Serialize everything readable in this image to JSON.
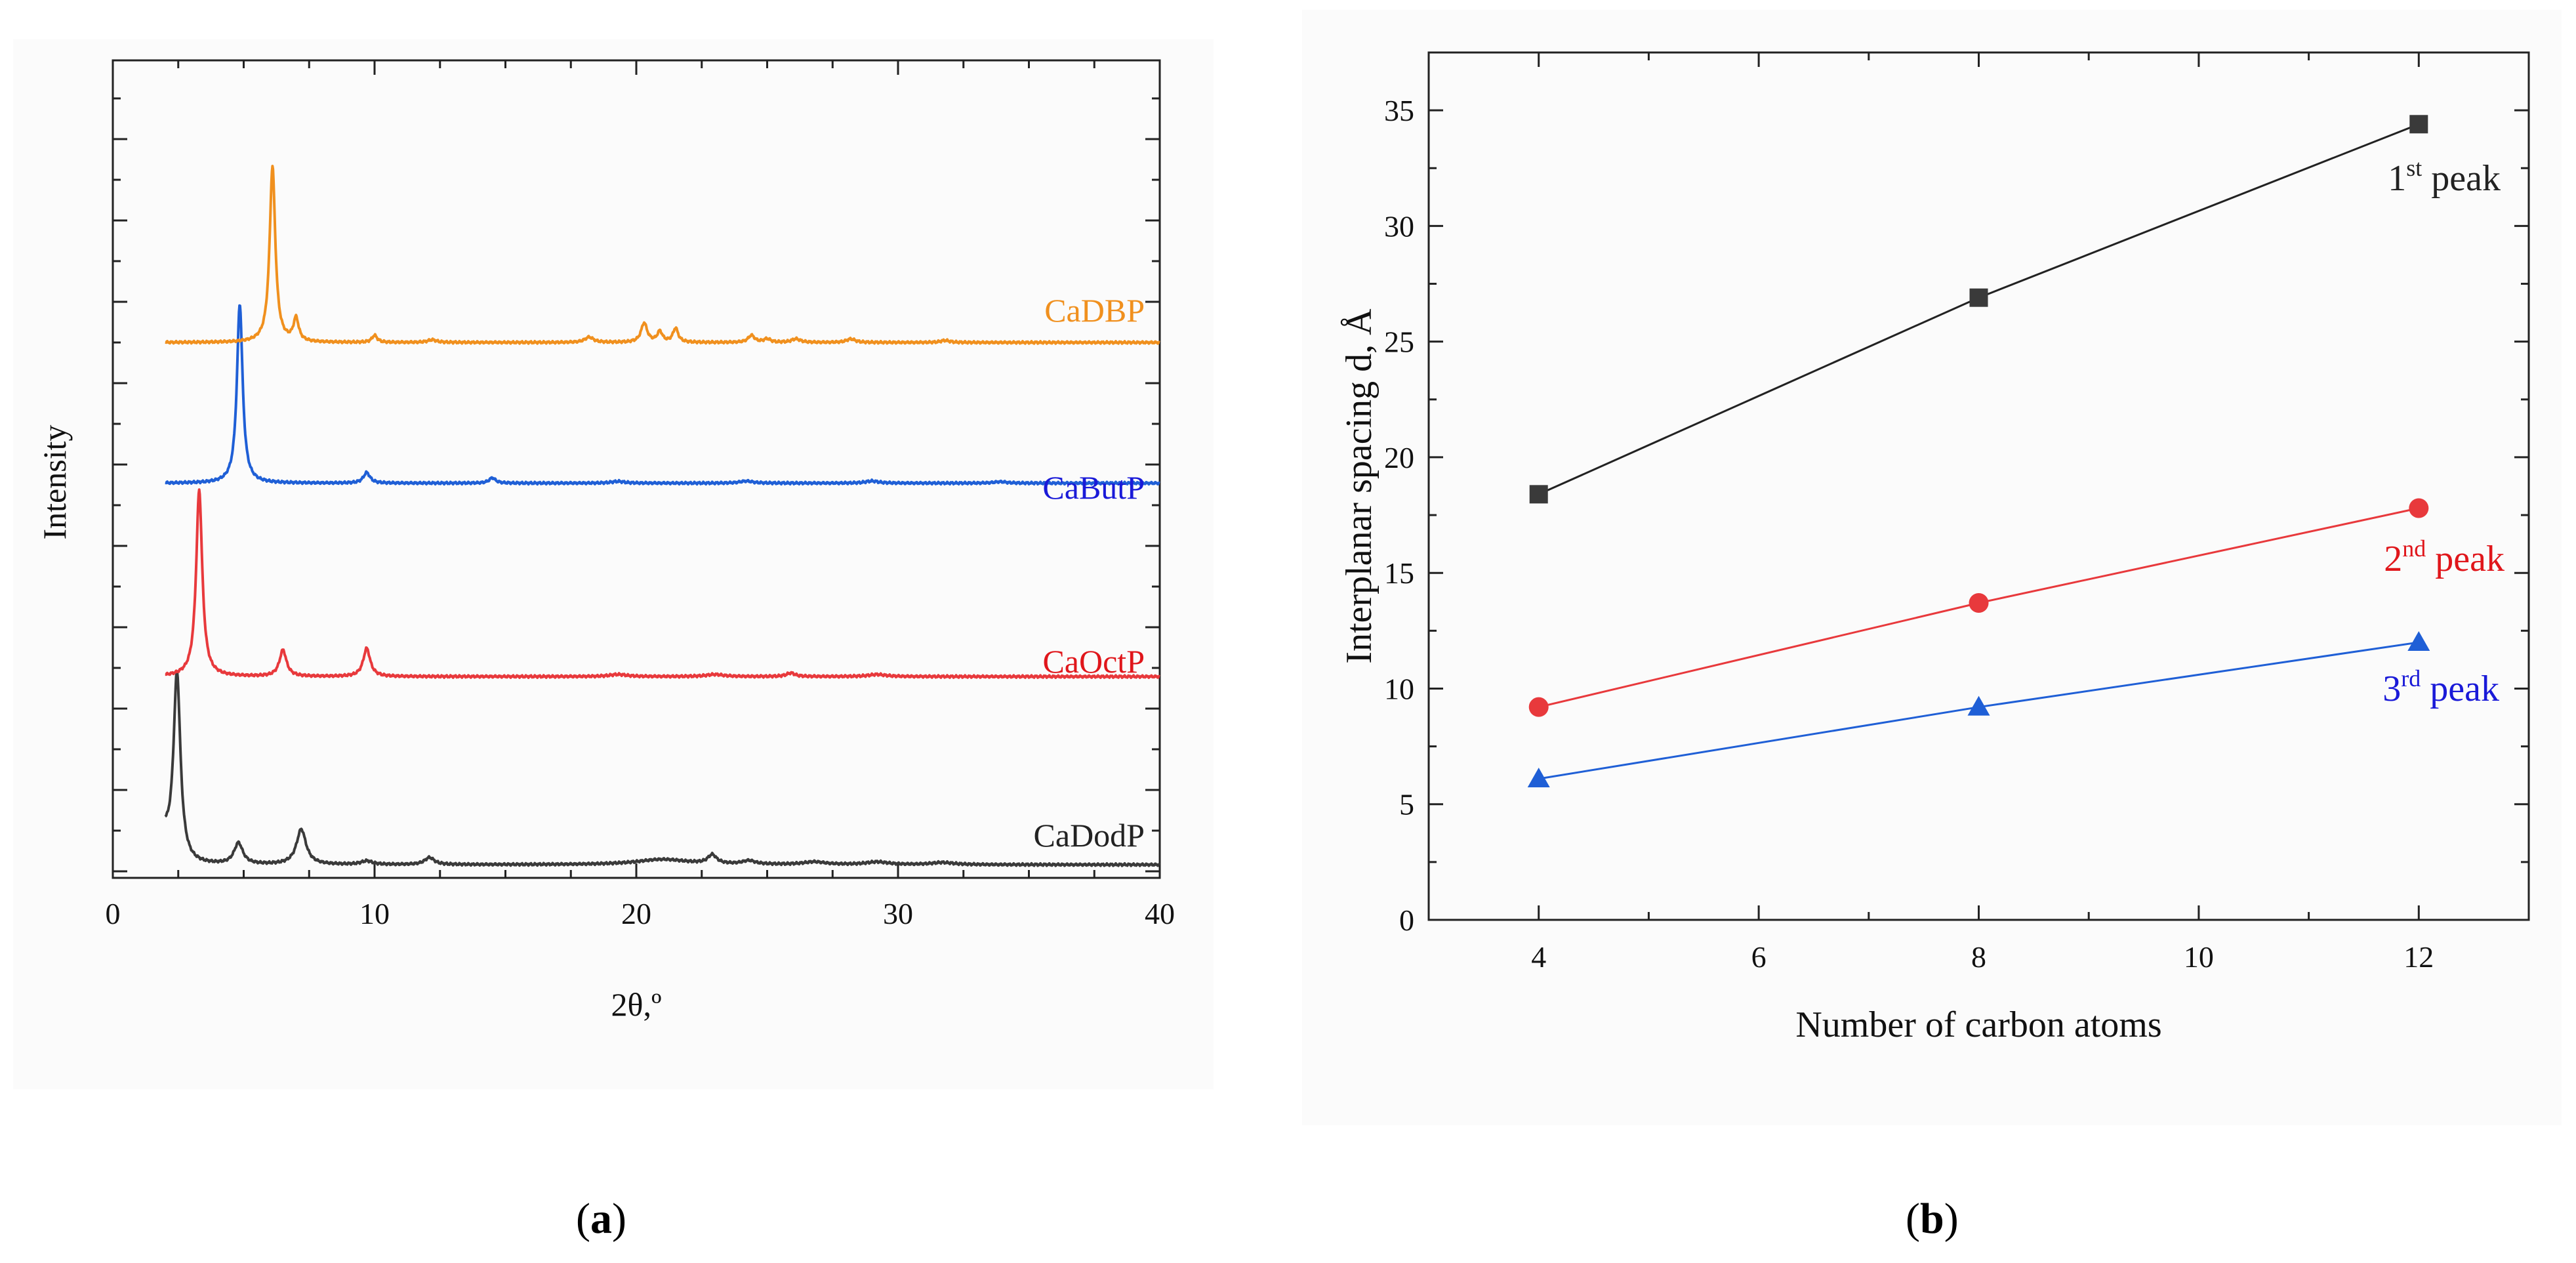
{
  "colors": {
    "black": "#3a3a3a",
    "orange": "#f0901e",
    "blue": "#1f5fd6",
    "red": "#e8393c",
    "text_blue": "#1a1ad8",
    "text_red": "#e0161b",
    "axis": "#222222"
  },
  "chart_data": [
    {
      "type": "line",
      "panel": "(a)",
      "panel_label": {
        "open": "(",
        "letter": "a",
        "close": ")"
      },
      "title": "",
      "xlabel": "2θ,º",
      "ylabel": "Intensity",
      "xlim": [
        0,
        40
      ],
      "ylim": [
        0,
        4.5
      ],
      "xticks": [
        0,
        10,
        20,
        30,
        40
      ],
      "xtick_labels": [
        "0",
        "10",
        "20",
        "30",
        "40"
      ],
      "series": [
        {
          "name": "CaDodP",
          "color": "#3a3a3a",
          "offset": 0.0,
          "base": 0.03,
          "peaks": [
            [
              2.45,
              1.1,
              0.16
            ],
            [
              4.8,
              0.12,
              0.2
            ],
            [
              7.2,
              0.2,
              0.22
            ],
            [
              9.7,
              0.02,
              0.25
            ],
            [
              12.1,
              0.04,
              0.22
            ],
            [
              21.0,
              0.03,
              1.2
            ],
            [
              22.9,
              0.05,
              0.2
            ],
            [
              24.3,
              0.02,
              0.3
            ],
            [
              26.8,
              0.015,
              0.5
            ],
            [
              29.2,
              0.015,
              0.5
            ],
            [
              31.7,
              0.012,
              0.5
            ]
          ],
          "lead": [
            2.0,
            0.15
          ]
        },
        {
          "name": "CaOctP",
          "color": "#e8393c",
          "offset": 1.1,
          "base": 0.0,
          "peaks": [
            [
              3.3,
              1.06,
              0.14
            ],
            [
              6.5,
              0.15,
              0.16
            ],
            [
              9.7,
              0.16,
              0.16
            ],
            [
              19.3,
              0.012,
              0.4
            ],
            [
              23.0,
              0.012,
              0.4
            ],
            [
              25.9,
              0.02,
              0.2
            ],
            [
              29.2,
              0.012,
              0.4
            ]
          ]
        },
        {
          "name": "CaButP",
          "color": "#1f5fd6",
          "offset": 2.2,
          "base": 0.0,
          "peaks": [
            [
              4.85,
              1.02,
              0.13
            ],
            [
              9.7,
              0.06,
              0.15
            ],
            [
              14.5,
              0.03,
              0.15
            ],
            [
              19.3,
              0.01,
              0.3
            ],
            [
              24.2,
              0.012,
              0.3
            ],
            [
              29.0,
              0.012,
              0.3
            ],
            [
              33.9,
              0.008,
              0.3
            ]
          ]
        },
        {
          "name": "CaDBP",
          "color": "#f0901e",
          "offset": 3.0,
          "base": 0.0,
          "peaks": [
            [
              6.1,
              1.0,
              0.13
            ],
            [
              7.0,
              0.13,
              0.12
            ],
            [
              10.0,
              0.04,
              0.12
            ],
            [
              12.2,
              0.015,
              0.2
            ],
            [
              18.2,
              0.03,
              0.2
            ],
            [
              20.3,
              0.11,
              0.14
            ],
            [
              20.9,
              0.06,
              0.12
            ],
            [
              21.5,
              0.08,
              0.12
            ],
            [
              24.4,
              0.04,
              0.15
            ],
            [
              25.0,
              0.02,
              0.15
            ],
            [
              26.1,
              0.02,
              0.2
            ],
            [
              28.2,
              0.02,
              0.2
            ],
            [
              31.8,
              0.012,
              0.2
            ]
          ]
        }
      ],
      "labels": [
        {
          "text": "CaDBP",
          "color": "#f0901e"
        },
        {
          "text": "CaButP",
          "color": "#1a1ad8"
        },
        {
          "text": "CaOctP",
          "color": "#e0161b"
        },
        {
          "text": "CaDodP",
          "color": "#222222"
        }
      ]
    },
    {
      "type": "line",
      "panel": "(b)",
      "panel_label": {
        "open": "(",
        "letter": "b",
        "close": ")"
      },
      "title": "",
      "xlabel": "Number of carbon atoms",
      "ylabel": "Interplanar spacing d, Å",
      "xlim": [
        3,
        13
      ],
      "ylim": [
        0,
        37.5
      ],
      "xticks": [
        4,
        6,
        8,
        10,
        12
      ],
      "yticks": [
        0,
        5,
        10,
        15,
        20,
        25,
        30,
        35
      ],
      "x": [
        4,
        8,
        12
      ],
      "series": [
        {
          "name": "1st peak",
          "label_base": "1",
          "label_sup": "st",
          "label_rest": " peak",
          "marker": "square",
          "color": "#3a3a3a",
          "line_color": "#222222",
          "text_color": "#222222",
          "values": [
            18.4,
            26.9,
            34.4
          ]
        },
        {
          "name": "2nd peak",
          "label_base": "2",
          "label_sup": "nd",
          "label_rest": " peak",
          "marker": "circle",
          "color": "#e8393c",
          "line_color": "#e8393c",
          "text_color": "#e0161b",
          "values": [
            9.2,
            13.7,
            17.8
          ]
        },
        {
          "name": "3rd peak",
          "label_base": "3",
          "label_sup": "rd",
          "label_rest": " peak",
          "marker": "triangle",
          "color": "#1f5fd6",
          "line_color": "#1f5fd6",
          "text_color": "#1a1ad8",
          "values": [
            6.1,
            9.2,
            12.0
          ]
        }
      ]
    }
  ]
}
